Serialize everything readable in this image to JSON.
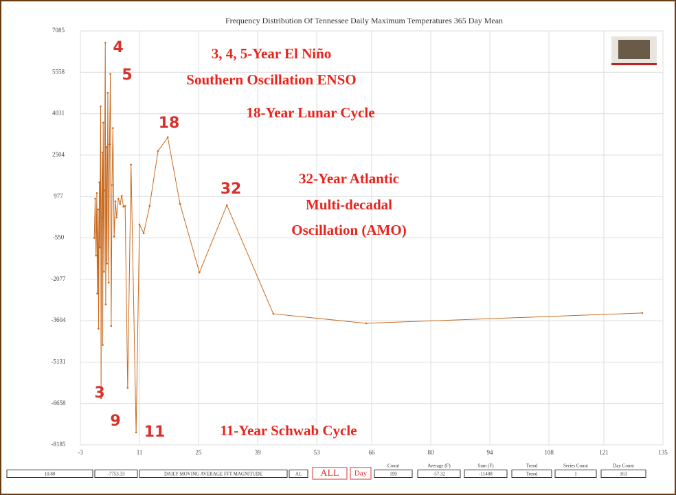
{
  "chart_data": {
    "type": "line",
    "title": "Frequency Distribution Of Tennessee Daily Maximum Temperatures 365 Day Mean",
    "xlim": [
      -3,
      135
    ],
    "xticks": [
      -3,
      11,
      25,
      39,
      53,
      66,
      80,
      94,
      108,
      121,
      135
    ],
    "ylim": [
      -8185,
      7085
    ],
    "yticks": [
      -8185,
      -6658,
      -5131,
      -3604,
      -2077,
      -550,
      977,
      2504,
      4031,
      5558,
      7085
    ],
    "grid": true,
    "series": [
      {
        "color": "#c8691c",
        "x": [
          0.3,
          0.5,
          0.7,
          0.9,
          1.0,
          1.2,
          1.3,
          1.5,
          1.6,
          1.8,
          1.9,
          2.0,
          2.2,
          2.3,
          2.4,
          2.6,
          2.7,
          2.9,
          3.0,
          3.2,
          3.3,
          3.5,
          3.7,
          3.9,
          4.1,
          4.3,
          4.5,
          4.7,
          5.0,
          5.3,
          5.6,
          6.0,
          6.4,
          6.8,
          7.2,
          7.6,
          8.2,
          9.0,
          10.2,
          11.0,
          12.0,
          13.4,
          15.4,
          17.7,
          20.6,
          25.2,
          31.7,
          42.7,
          64.7,
          130.1
        ],
        "values": [
          -550,
          900,
          -1200,
          1100,
          -2600,
          500,
          -3900,
          1500,
          -900,
          4300,
          -6460,
          200,
          2600,
          -4500,
          3700,
          -1800,
          1200,
          6650,
          -3000,
          2800,
          -1500,
          4800,
          -2200,
          2900,
          5500,
          -3800,
          1400,
          3500,
          -500,
          800,
          200,
          900,
          700,
          1000,
          600,
          630,
          -6080,
          2150,
          -7725,
          -50,
          -380,
          630,
          2655,
          3161,
          705,
          -1826,
          655,
          -3350,
          -3700,
          -3320
        ]
      }
    ],
    "annotations": [
      "4",
      "5",
      "18",
      "32",
      "3",
      "9",
      "11",
      "3, 4, 5-Year El Niño",
      "Southern Oscillation ENSO",
      "18-Year Lunar Cycle",
      "32-Year Atlantic",
      "Multi-decadal",
      "Oscillation (AMO)",
      "11-Year Schwab Cycle"
    ]
  },
  "toolbar": {
    "fields": [
      "10.80",
      "-7753.33",
      "DAILY MOVING AVERAGE FFT MAGNITUDE",
      "AL"
    ],
    "buttons": [
      "ALL",
      "Day"
    ],
    "stats": [
      {
        "label": "Count",
        "value": "199"
      },
      {
        "label": "Average (F)",
        "value": "-57.32"
      },
      {
        "label": "Sum (F)",
        "value": "-11408"
      },
      {
        "label": "Trend",
        "value": "Trend"
      },
      {
        "label": "Series Count",
        "value": "1"
      },
      {
        "label": "Day Count",
        "value": "163"
      }
    ]
  }
}
